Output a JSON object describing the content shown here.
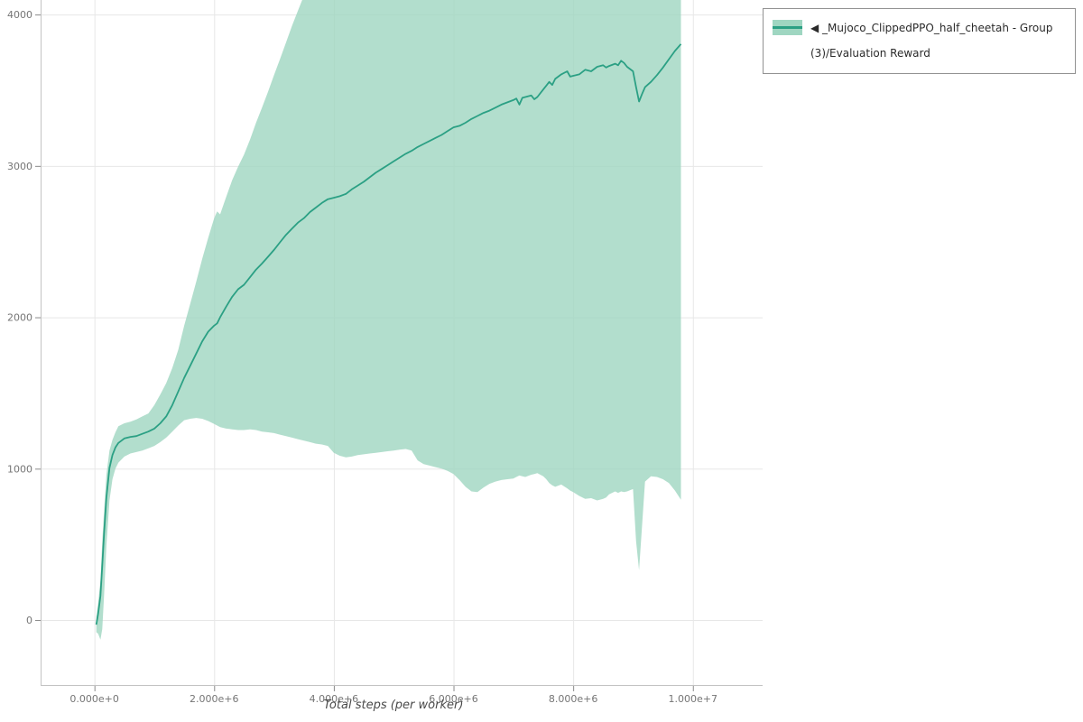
{
  "chart_data": {
    "type": "line",
    "title": "",
    "xlabel": "Total steps (per worker)",
    "ylabel": "",
    "xlim": [
      -900000,
      11165000
    ],
    "ylim": [
      -435,
      4096
    ],
    "grid": true,
    "x_ticks": [
      {
        "value": 0,
        "label": "0.000e+0"
      },
      {
        "value": 2000000,
        "label": "2.000e+6"
      },
      {
        "value": 4000000,
        "label": "4.000e+6"
      },
      {
        "value": 6000000,
        "label": "6.000e+6"
      },
      {
        "value": 8000000,
        "label": "8.000e+6"
      },
      {
        "value": 10000000,
        "label": "1.000e+7"
      }
    ],
    "y_ticks": [
      {
        "value": 0,
        "label": "0"
      },
      {
        "value": 1000,
        "label": "1000"
      },
      {
        "value": 2000,
        "label": "2000"
      },
      {
        "value": 3000,
        "label": "3000"
      },
      {
        "value": 4000,
        "label": "4000"
      }
    ],
    "legend": {
      "position": "top-right-outside",
      "label": "◀ _Mujoco_ClippedPPO_half_cheetah - Group(3)/Evaluation Reward"
    },
    "colors": {
      "line": "#2ba084",
      "band": "#9fd6c1",
      "grid": "#e7e7e7",
      "axis": "#c3c3c3",
      "tick": "#8a8a8a",
      "tick_text": "#757575"
    },
    "x": [
      30000,
      60000,
      100000,
      130000,
      160000,
      200000,
      250000,
      300000,
      350000,
      400000,
      500000,
      600000,
      700000,
      800000,
      900000,
      1000000,
      1100000,
      1200000,
      1300000,
      1400000,
      1500000,
      1600000,
      1700000,
      1800000,
      1900000,
      2000000,
      2050000,
      2100000,
      2200000,
      2300000,
      2400000,
      2500000,
      2600000,
      2700000,
      2800000,
      2900000,
      3000000,
      3100000,
      3200000,
      3300000,
      3400000,
      3500000,
      3600000,
      3700000,
      3800000,
      3900000,
      4000000,
      4100000,
      4200000,
      4300000,
      4400000,
      4500000,
      4600000,
      4700000,
      4800000,
      4900000,
      5000000,
      5100000,
      5200000,
      5300000,
      5400000,
      5500000,
      5600000,
      5700000,
      5800000,
      5900000,
      6000000,
      6100000,
      6200000,
      6300000,
      6400000,
      6500000,
      6600000,
      6700000,
      6800000,
      6900000,
      7000000,
      7050000,
      7100000,
      7150000,
      7200000,
      7300000,
      7350000,
      7400000,
      7500000,
      7550000,
      7600000,
      7650000,
      7700000,
      7800000,
      7900000,
      7950000,
      8000000,
      8100000,
      8200000,
      8300000,
      8400000,
      8500000,
      8550000,
      8600000,
      8700000,
      8750000,
      8800000,
      8850000,
      8900000,
      9000000,
      9050000,
      9100000,
      9150000,
      9200000,
      9300000,
      9400000,
      9500000,
      9600000,
      9700000,
      9800000
    ],
    "series": [
      {
        "name": "_Mujoco_ClippedPPO_half_cheetah - Group(3)/Evaluation Reward",
        "values": [
          -30,
          40,
          160,
          360,
          570,
          810,
          1005,
          1090,
          1140,
          1170,
          1200,
          1210,
          1215,
          1230,
          1245,
          1265,
          1300,
          1345,
          1420,
          1510,
          1600,
          1680,
          1760,
          1840,
          1905,
          1945,
          1960,
          2000,
          2070,
          2135,
          2185,
          2215,
          2265,
          2315,
          2355,
          2400,
          2445,
          2495,
          2545,
          2585,
          2625,
          2655,
          2695,
          2725,
          2755,
          2780,
          2790,
          2800,
          2815,
          2845,
          2870,
          2895,
          2925,
          2955,
          2980,
          3005,
          3030,
          3055,
          3080,
          3100,
          3125,
          3145,
          3165,
          3185,
          3205,
          3230,
          3255,
          3265,
          3285,
          3310,
          3330,
          3350,
          3365,
          3385,
          3405,
          3420,
          3435,
          3445,
          3405,
          3450,
          3455,
          3465,
          3440,
          3455,
          3505,
          3530,
          3555,
          3535,
          3575,
          3605,
          3625,
          3590,
          3595,
          3605,
          3635,
          3625,
          3655,
          3665,
          3650,
          3660,
          3675,
          3665,
          3695,
          3680,
          3655,
          3625,
          3520,
          3425,
          3475,
          3520,
          3555,
          3600,
          3650,
          3705,
          3760,
          3805
        ]
      }
    ],
    "band": {
      "lower": [
        -80,
        -90,
        -130,
        -60,
        160,
        490,
        790,
        930,
        1000,
        1040,
        1080,
        1100,
        1110,
        1120,
        1135,
        1150,
        1175,
        1205,
        1245,
        1285,
        1320,
        1330,
        1335,
        1330,
        1315,
        1295,
        1285,
        1275,
        1265,
        1260,
        1255,
        1255,
        1260,
        1255,
        1245,
        1240,
        1235,
        1225,
        1215,
        1205,
        1195,
        1185,
        1175,
        1165,
        1160,
        1150,
        1105,
        1085,
        1075,
        1080,
        1090,
        1095,
        1100,
        1105,
        1110,
        1115,
        1120,
        1125,
        1130,
        1120,
        1055,
        1030,
        1020,
        1010,
        1000,
        985,
        965,
        925,
        880,
        850,
        845,
        875,
        900,
        915,
        925,
        930,
        935,
        945,
        955,
        950,
        945,
        960,
        965,
        970,
        950,
        930,
        905,
        890,
        880,
        895,
        870,
        855,
        845,
        820,
        800,
        805,
        790,
        800,
        810,
        830,
        850,
        840,
        850,
        845,
        850,
        865,
        520,
        330,
        620,
        915,
        950,
        945,
        930,
        905,
        855,
        795
      ],
      "upper": [
        20,
        110,
        260,
        520,
        720,
        960,
        1120,
        1190,
        1240,
        1280,
        1300,
        1310,
        1325,
        1345,
        1365,
        1420,
        1490,
        1565,
        1665,
        1785,
        1945,
        2090,
        2235,
        2385,
        2525,
        2655,
        2700,
        2680,
        2795,
        2905,
        2995,
        3075,
        3175,
        3285,
        3385,
        3490,
        3600,
        3705,
        3815,
        3925,
        4025,
        4125,
        4235,
        4335,
        4450,
        4450,
        4450,
        4450,
        4450,
        4450,
        4450,
        4450,
        4450,
        4450,
        4450,
        4450,
        4450,
        4450,
        4450,
        4450,
        4450,
        4450,
        4450,
        4450,
        4450,
        4450,
        4450,
        4450,
        4450,
        4450,
        4450,
        4450,
        4450,
        4450,
        4450,
        4450,
        4450,
        4450,
        4450,
        4450,
        4450,
        4450,
        4450,
        4450,
        4450,
        4450,
        4450,
        4450,
        4450,
        4450,
        4450,
        4450,
        4450,
        4450,
        4450,
        4450,
        4450,
        4450,
        4450,
        4450,
        4450,
        4450,
        4450,
        4450,
        4450,
        4450,
        4450,
        4450,
        4450,
        4450,
        4450,
        4450,
        4450,
        4450,
        4450,
        4450
      ]
    }
  }
}
